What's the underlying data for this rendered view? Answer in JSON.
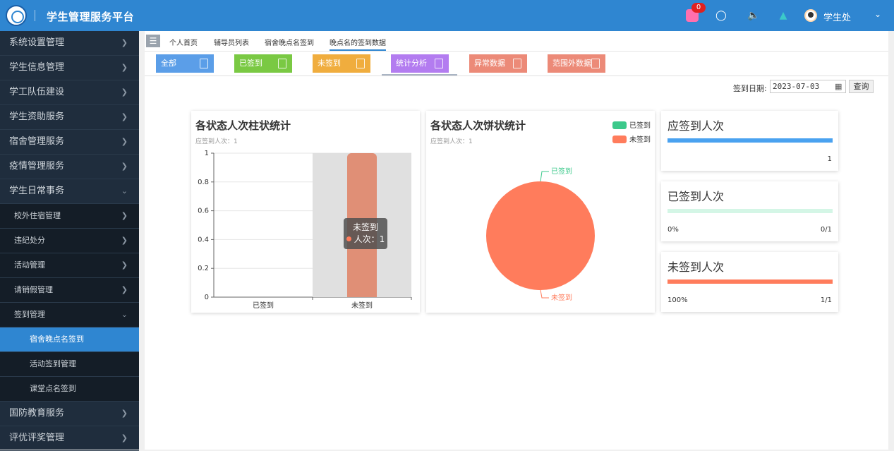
{
  "app": {
    "title": "学生管理服务平台",
    "badge_count": "0",
    "user_name": "学生处"
  },
  "colors": {
    "primary": "#2f86d1",
    "signed": "#3cc98b",
    "unsigned": "#ff7c5c",
    "expected": "#4aa2f0",
    "sidebar_bg": "#1f2d3d"
  },
  "top_icons": [
    "app-icon",
    "chat-icon",
    "sound-icon",
    "shirt-icon",
    "avatar-icon",
    "chevron-down-icon"
  ],
  "sidebar": {
    "items": [
      {
        "label": "系统设置管理"
      },
      {
        "label": "学生信息管理"
      },
      {
        "label": "学工队伍建设"
      },
      {
        "label": "学生资助服务"
      },
      {
        "label": "宿舍管理服务"
      },
      {
        "label": "疫情管理服务"
      },
      {
        "label": "学生日常事务"
      },
      {
        "label": "校外住宿管理"
      },
      {
        "label": "违纪处分"
      },
      {
        "label": "活动管理"
      },
      {
        "label": "请销假管理"
      },
      {
        "label": "签到管理"
      },
      {
        "label": "宿舍晚点名签到"
      },
      {
        "label": "活动签到管理"
      },
      {
        "label": "课堂点名签到"
      },
      {
        "label": "国防教育服务"
      },
      {
        "label": "评优评奖管理"
      }
    ]
  },
  "page_tabs": [
    {
      "label": "个人首页"
    },
    {
      "label": "辅导员列表"
    },
    {
      "label": "宿舍晚点名签到"
    },
    {
      "label": "晚点名的签到数据"
    }
  ],
  "filters": [
    {
      "label": "全部",
      "color": "#5b9ee8"
    },
    {
      "label": "已签到",
      "color": "#7ac943"
    },
    {
      "label": "未签到",
      "color": "#f0ad3e"
    },
    {
      "label": "统计分析",
      "color": "#b37cf0"
    },
    {
      "label": "异常数据",
      "color": "#ec8a78"
    },
    {
      "label": "范围外数据",
      "color": "#ec8a78"
    }
  ],
  "date_filter": {
    "label": "签到日期:",
    "value": "2023-07-03",
    "query_label": "查询"
  },
  "bar_card": {
    "title": "各状态人次柱状统计",
    "subtitle": "应签到人次：1"
  },
  "pie_card": {
    "title": "各状态人次饼状统计",
    "subtitle": "应签到人次：1"
  },
  "tooltip": {
    "title": "未签到",
    "line": "人次：1"
  },
  "stats": [
    {
      "title": "应签到人次",
      "percent": "",
      "value": "1",
      "fill": 1.0
    },
    {
      "title": "已签到人次",
      "percent": "0%",
      "value": "0/1",
      "fill": 0.0
    },
    {
      "title": "未签到人次",
      "percent": "100%",
      "value": "1/1",
      "fill": 1.0
    }
  ],
  "chart_data": [
    {
      "type": "bar",
      "title": "各状态人次柱状统计",
      "subtitle": "应签到人次：1",
      "categories": [
        "已签到",
        "未签到"
      ],
      "values": [
        0,
        1
      ],
      "ylim": [
        0,
        1
      ],
      "yticks": [
        "0",
        "0.2",
        "0.4",
        "0.6",
        "0.8",
        "1"
      ],
      "grid": true
    },
    {
      "type": "pie",
      "title": "各状态人次饼状统计",
      "subtitle": "应签到人次：1",
      "labels": [
        "已签到",
        "未签到"
      ],
      "values": [
        0,
        1
      ],
      "legend": "top-right"
    }
  ]
}
